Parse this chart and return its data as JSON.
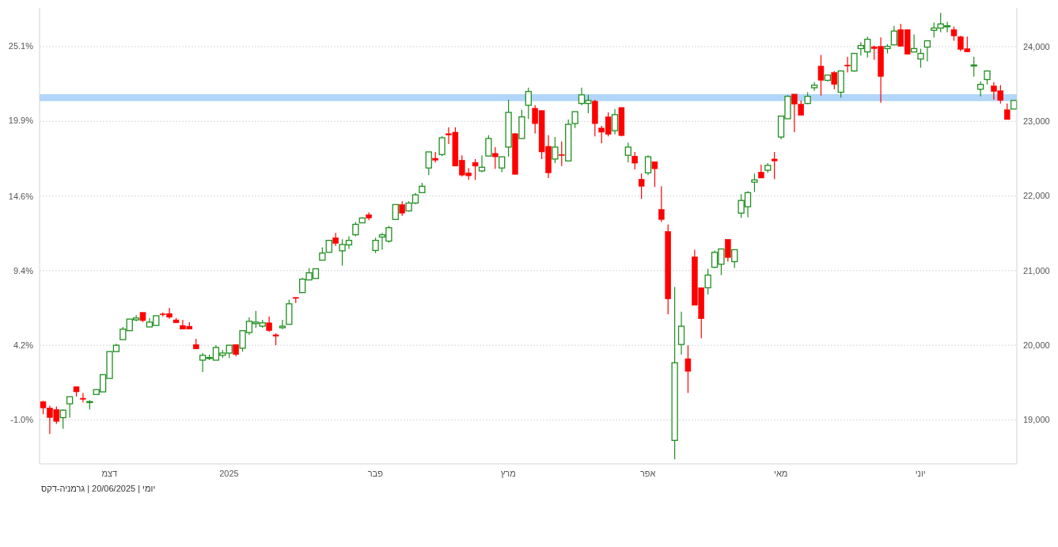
{
  "chart_data": {
    "type": "candlestick",
    "categories": [
      null,
      null,
      null,
      null,
      null,
      null,
      null,
      null,
      null,
      null,
      "דצמ",
      null,
      null,
      null,
      null,
      null,
      null,
      null,
      null,
      null,
      null,
      null,
      null,
      null,
      null,
      null,
      null,
      null,
      "2025",
      null,
      null,
      null,
      null,
      null,
      null,
      null,
      null,
      null,
      null,
      null,
      null,
      null,
      null,
      null,
      null,
      null,
      null,
      null,
      null,
      null,
      "פבר",
      null,
      null,
      null,
      null,
      null,
      null,
      null,
      null,
      null,
      null,
      null,
      null,
      null,
      null,
      null,
      null,
      null,
      null,
      null,
      "מרץ",
      null,
      null,
      null,
      null,
      null,
      null,
      null,
      null,
      null,
      null,
      null,
      null,
      null,
      null,
      null,
      null,
      null,
      null,
      null,
      null,
      "אפר",
      null,
      null,
      null,
      null,
      null,
      null,
      null,
      null,
      null,
      null,
      null,
      null,
      null,
      null,
      null,
      null,
      null,
      null,
      null,
      "מאי",
      null,
      null,
      null,
      null,
      null,
      null,
      null,
      null,
      null,
      null,
      null,
      null,
      null,
      null,
      null,
      null,
      null,
      null,
      null,
      null,
      "יוני",
      null,
      null,
      null,
      null,
      null,
      null,
      null,
      null,
      null,
      null,
      null,
      null,
      null,
      null
    ],
    "ohlc": [
      [
        19245,
        19255,
        19075,
        19160
      ],
      [
        19160,
        19190,
        18810,
        19030
      ],
      [
        19140,
        19180,
        18945,
        18980
      ],
      [
        19030,
        19140,
        18880,
        19130
      ],
      [
        19215,
        19310,
        19030,
        19310
      ],
      [
        19445,
        19445,
        19310,
        19375
      ],
      [
        19290,
        19360,
        19235,
        19275
      ],
      [
        19235,
        19265,
        19140,
        19245
      ],
      [
        19340,
        19405,
        19340,
        19405
      ],
      [
        19375,
        19605,
        19375,
        19605
      ],
      [
        19555,
        19915,
        19555,
        19915
      ],
      [
        19915,
        20020,
        19915,
        20000
      ],
      [
        20075,
        20245,
        20075,
        20215
      ],
      [
        20195,
        20350,
        20195,
        20350
      ],
      [
        20340,
        20405,
        20320,
        20365
      ],
      [
        20440,
        20440,
        20310,
        20330
      ],
      [
        20245,
        20365,
        20245,
        20310
      ],
      [
        20265,
        20395,
        20265,
        20395
      ],
      [
        20420,
        20440,
        20385,
        20410
      ],
      [
        20425,
        20500,
        20355,
        20375
      ],
      [
        20340,
        20365,
        20300,
        20300
      ],
      [
        20265,
        20340,
        20215,
        20215
      ],
      [
        20255,
        20310,
        20215,
        20215
      ],
      [
        20010,
        20085,
        19950,
        19950
      ],
      [
        19800,
        19895,
        19640,
        19865
      ],
      [
        19825,
        19875,
        19800,
        19835
      ],
      [
        19800,
        20000,
        19800,
        19970
      ],
      [
        19865,
        19935,
        19830,
        19895
      ],
      [
        19895,
        20000,
        19830,
        20000
      ],
      [
        20010,
        20010,
        19850,
        19875
      ],
      [
        19960,
        20195,
        19915,
        20195
      ],
      [
        20170,
        20375,
        20140,
        20320
      ],
      [
        20290,
        20460,
        20235,
        20310
      ],
      [
        20255,
        20340,
        20235,
        20300
      ],
      [
        20300,
        20385,
        20180,
        20195
      ],
      [
        20140,
        20160,
        20000,
        20120
      ],
      [
        20235,
        20340,
        20215,
        20255
      ],
      [
        20280,
        20610,
        20280,
        20555
      ],
      [
        20640,
        20640,
        20565,
        20630
      ],
      [
        20705,
        20905,
        20705,
        20885
      ],
      [
        20875,
        21035,
        20875,
        20970
      ],
      [
        20895,
        21025,
        20895,
        21025
      ],
      [
        21140,
        21310,
        21140,
        21235
      ],
      [
        21245,
        21405,
        21245,
        21405
      ],
      [
        21440,
        21505,
        21330,
        21365
      ],
      [
        21265,
        21420,
        21065,
        21350
      ],
      [
        21345,
        21460,
        21290,
        21405
      ],
      [
        21480,
        21650,
        21460,
        21620
      ],
      [
        21640,
        21715,
        21640,
        21705
      ],
      [
        21750,
        21780,
        21675,
        21705
      ],
      [
        21270,
        21440,
        21235,
        21405
      ],
      [
        21450,
        21505,
        21280,
        21480
      ],
      [
        21395,
        21600,
        21375,
        21575
      ],
      [
        21685,
        21885,
        21685,
        21885
      ],
      [
        21885,
        21930,
        21735,
        21770
      ],
      [
        21800,
        21930,
        21790,
        21905
      ],
      [
        21905,
        22040,
        21890,
        22015
      ],
      [
        22045,
        22175,
        22045,
        22130
      ],
      [
        22375,
        22590,
        22280,
        22590
      ],
      [
        22505,
        22590,
        22450,
        22480
      ],
      [
        22555,
        22800,
        22535,
        22780
      ],
      [
        22835,
        22920,
        22695,
        22815
      ],
      [
        22855,
        22920,
        22400,
        22400
      ],
      [
        22480,
        22545,
        22260,
        22280
      ],
      [
        22310,
        22375,
        22215,
        22270
      ],
      [
        22450,
        22495,
        22215,
        22400
      ],
      [
        22335,
        22545,
        22320,
        22385
      ],
      [
        22535,
        22815,
        22535,
        22770
      ],
      [
        22570,
        22655,
        22365,
        22525
      ],
      [
        22375,
        22525,
        22320,
        22525
      ],
      [
        22655,
        23290,
        22525,
        23120
      ],
      [
        22835,
        22845,
        22290,
        22290
      ],
      [
        22770,
        23155,
        22770,
        23060
      ],
      [
        23215,
        23450,
        23035,
        23400
      ],
      [
        23175,
        23215,
        22835,
        22970
      ],
      [
        23145,
        23145,
        22495,
        22590
      ],
      [
        22665,
        22815,
        22240,
        22310
      ],
      [
        22495,
        22790,
        22440,
        22655
      ],
      [
        22555,
        22730,
        22400,
        22545
      ],
      [
        22470,
        23025,
        22470,
        22960
      ],
      [
        22970,
        23130,
        22910,
        23130
      ],
      [
        23240,
        23450,
        23215,
        23355
      ],
      [
        23240,
        23355,
        23110,
        23280
      ],
      [
        23270,
        23290,
        22800,
        22970
      ],
      [
        22910,
        22940,
        22705,
        22855
      ],
      [
        23060,
        23120,
        22800,
        22825
      ],
      [
        22875,
        23165,
        22825,
        23090
      ],
      [
        23185,
        23185,
        22800,
        22810
      ],
      [
        22545,
        22715,
        22450,
        22655
      ],
      [
        22535,
        22590,
        22355,
        22440
      ],
      [
        22225,
        22300,
        21960,
        22130
      ],
      [
        22310,
        22545,
        22280,
        22525
      ],
      [
        22460,
        22460,
        22120,
        22365
      ],
      [
        21820,
        22130,
        21650,
        21685
      ],
      [
        21525,
        21620,
        20415,
        20620
      ],
      [
        18725,
        20780,
        18470,
        19765
      ],
      [
        20010,
        20450,
        19875,
        20255
      ],
      [
        19820,
        20000,
        19360,
        19650
      ],
      [
        21185,
        21280,
        20535,
        20535
      ],
      [
        20770,
        20770,
        20095,
        20355
      ],
      [
        20770,
        21025,
        20680,
        20940
      ],
      [
        21045,
        21270,
        21035,
        21245
      ],
      [
        21085,
        21290,
        20940,
        21290
      ],
      [
        21420,
        21420,
        21120,
        21175
      ],
      [
        21120,
        21280,
        21035,
        21280
      ],
      [
        21770,
        22025,
        21705,
        21940
      ],
      [
        21855,
        22065,
        21715,
        22045
      ],
      [
        22185,
        22300,
        22055,
        22215
      ],
      [
        22320,
        22420,
        22240,
        22240
      ],
      [
        22345,
        22440,
        22310,
        22410
      ],
      [
        22495,
        22590,
        22225,
        22470
      ],
      [
        22790,
        23070,
        22760,
        23070
      ],
      [
        23035,
        23350,
        23035,
        23335
      ],
      [
        23365,
        23365,
        22855,
        23230
      ],
      [
        23230,
        23280,
        23080,
        23080
      ],
      [
        23240,
        23390,
        23230,
        23335
      ],
      [
        23450,
        23525,
        23410,
        23485
      ],
      [
        23740,
        23890,
        23345,
        23550
      ],
      [
        23550,
        23620,
        23535,
        23620
      ],
      [
        23655,
        23675,
        23430,
        23495
      ],
      [
        23390,
        23685,
        23315,
        23675
      ],
      [
        23755,
        23865,
        23655,
        23745
      ],
      [
        23675,
        23910,
        23665,
        23910
      ],
      [
        23975,
        24060,
        23880,
        24015
      ],
      [
        23930,
        24135,
        23855,
        24100
      ],
      [
        24000,
        24015,
        23825,
        23975
      ],
      [
        24005,
        24125,
        23250,
        23600
      ],
      [
        23975,
        24035,
        23910,
        24005
      ],
      [
        24025,
        24280,
        24025,
        24210
      ],
      [
        24230,
        24305,
        24005,
        24005
      ],
      [
        24230,
        24230,
        23900,
        23900
      ],
      [
        23930,
        24165,
        23930,
        23975
      ],
      [
        23835,
        23975,
        23720,
        23910
      ],
      [
        23995,
        24080,
        23805,
        24080
      ],
      [
        24220,
        24325,
        24125,
        24250
      ],
      [
        24250,
        24455,
        24195,
        24305
      ],
      [
        24270,
        24335,
        24195,
        24280
      ],
      [
        24230,
        24270,
        24080,
        24145
      ],
      [
        24135,
        24145,
        23940,
        23965
      ],
      [
        23975,
        24135,
        23930,
        23930
      ],
      [
        23745,
        23865,
        23600,
        23755
      ],
      [
        23430,
        23535,
        23335,
        23495
      ],
      [
        23560,
        23675,
        23495,
        23675
      ],
      [
        23475,
        23525,
        23290,
        23400
      ],
      [
        23410,
        23485,
        23240,
        23280
      ],
      [
        23155,
        23240,
        23025,
        23025
      ],
      [
        23165,
        23280,
        23165,
        23280
      ]
    ],
    "ylim": [
      18410,
      24520
    ],
    "yticks": [
      {
        "value": 19000,
        "label": "19,000"
      },
      {
        "value": 20000,
        "label": "20,000"
      },
      {
        "value": 21000,
        "label": "21,000"
      },
      {
        "value": 22000,
        "label": "22,000"
      },
      {
        "value": 23000,
        "label": "23,000"
      },
      {
        "value": 24000,
        "label": "24,000"
      }
    ],
    "y2lim": [
      -4.07,
      27.76
    ],
    "y2ticks": [
      {
        "value": -1.0,
        "label": "-1.0%"
      },
      {
        "value": 4.2,
        "label": "4.2%"
      },
      {
        "value": 9.4,
        "label": "9.4%"
      },
      {
        "value": 14.6,
        "label": "14.6%"
      },
      {
        "value": 19.9,
        "label": "19.9%"
      },
      {
        "value": 25.1,
        "label": "25.1%"
      }
    ],
    "bands": [
      {
        "axis": "y",
        "from": 23270,
        "to": 23365,
        "color": "#a8d1f8"
      }
    ],
    "grid": "y",
    "annotations": [
      "יומי | 20/06/2025 | גרמניה-דקס"
    ]
  }
}
